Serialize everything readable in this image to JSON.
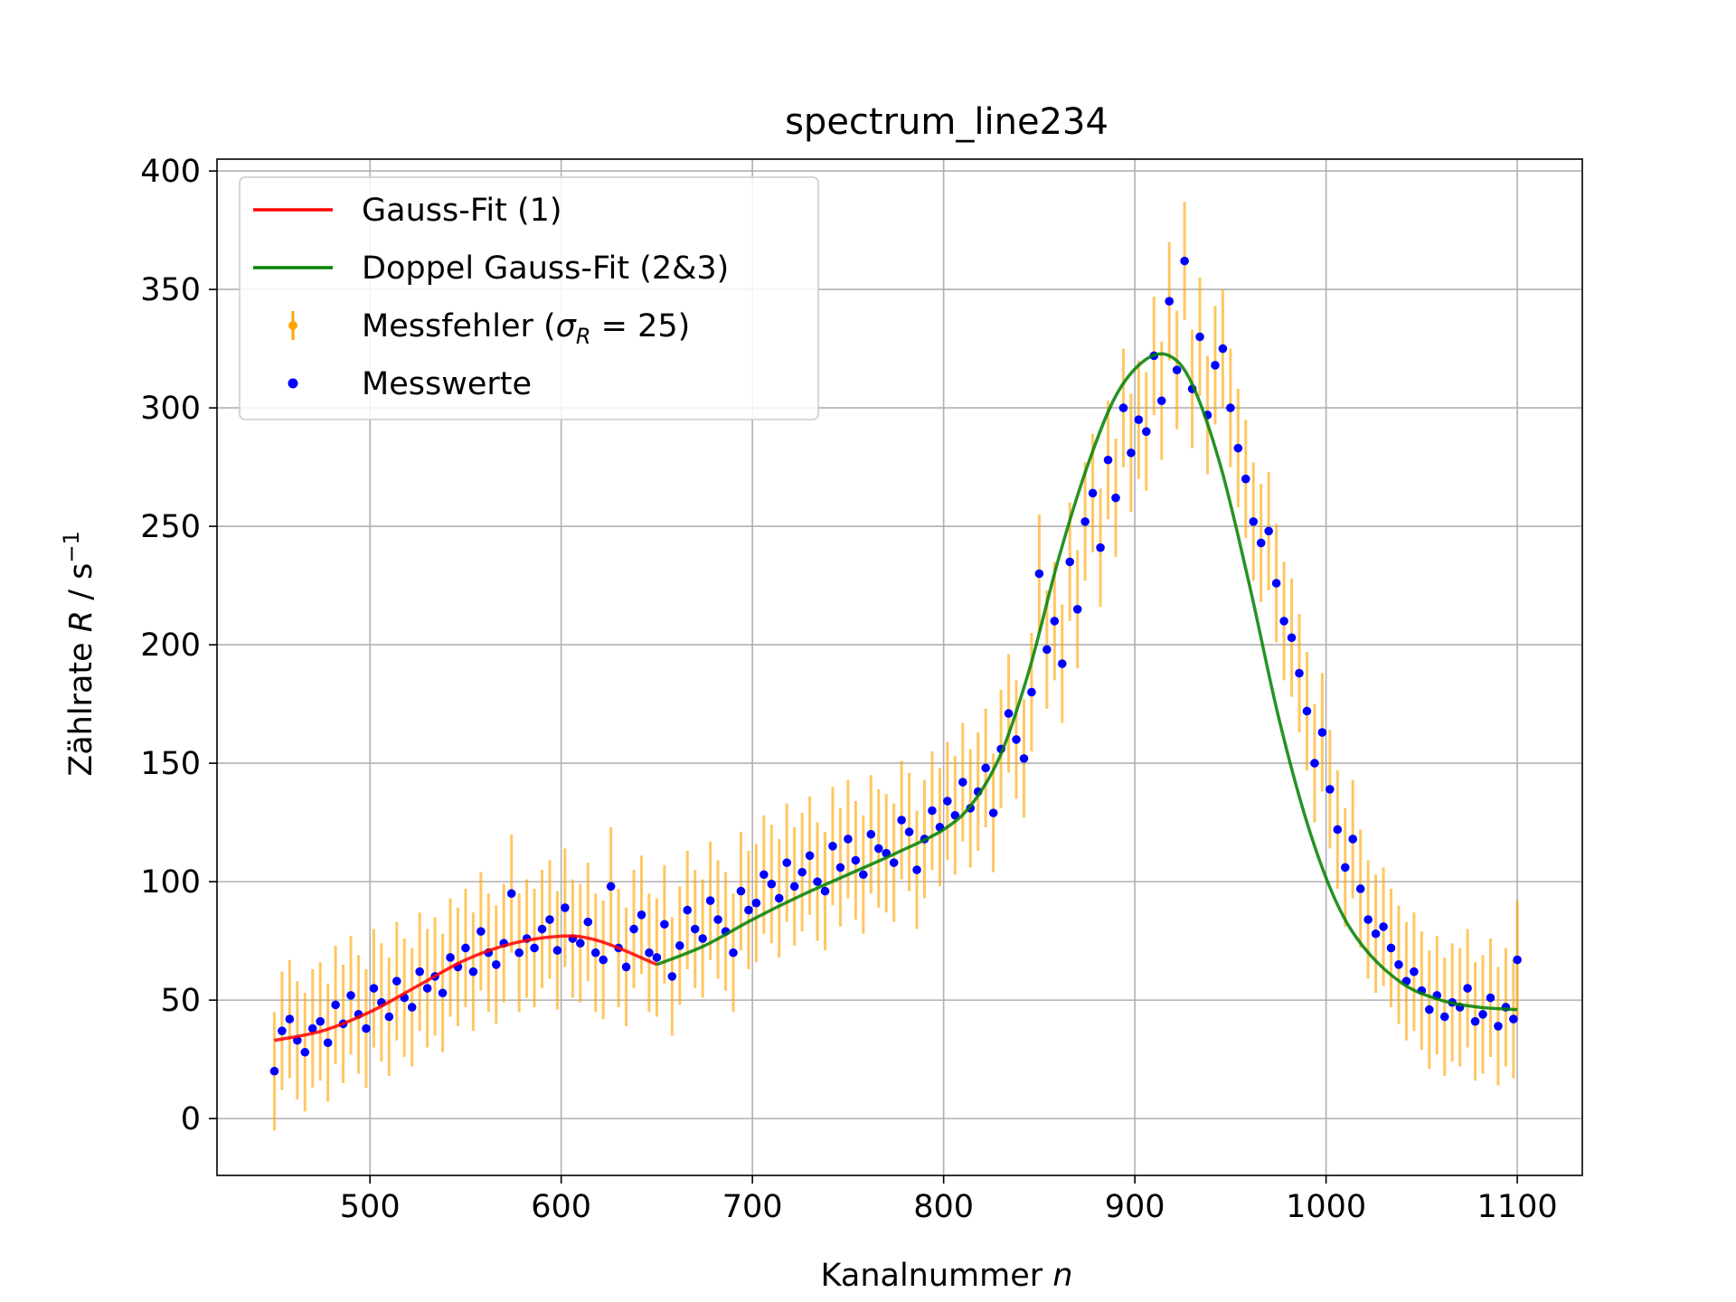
{
  "chart_data": {
    "type": "scatter",
    "title": "spectrum_line234",
    "xlabel": {
      "text": "Kanalnummer ",
      "var": "n"
    },
    "ylabel": {
      "text": "Zählrate ",
      "var": "R",
      "unit": " / s",
      "exp": "−1"
    },
    "xlim": [
      420,
      1134
    ],
    "ylim": [
      -24,
      405
    ],
    "xticks": [
      500,
      600,
      700,
      800,
      900,
      1000,
      1100
    ],
    "yticks": [
      0,
      50,
      100,
      150,
      200,
      250,
      300,
      350,
      400
    ],
    "grid": true,
    "legend_position": "top-left",
    "legend": {
      "gauss": "Gauss-Fit (1)",
      "doppel": "Doppel Gauss-Fit (2&3)",
      "fehler_prefix": "Messfehler (",
      "fehler_sym": "σ",
      "fehler_sub": "R",
      "fehler_suffix": " = 25)",
      "messwerte": "Messwerte"
    },
    "error_sigma": 25,
    "colors": {
      "gauss": "#ff0000",
      "doppel": "#008000",
      "errorbars": "#ffa500",
      "points": "#0000ff"
    },
    "series": [
      {
        "name": "Gauss-Fit (1)",
        "kind": "line",
        "x": [
          450,
          475,
          500,
          525,
          550,
          575,
          600,
          615,
          630,
          650
        ],
        "y": [
          33,
          37,
          45,
          56,
          67,
          74,
          77,
          76,
          72,
          65
        ]
      },
      {
        "name": "Doppel Gauss-Fit (2&3)",
        "kind": "line",
        "x": [
          650,
          675,
          700,
          725,
          750,
          775,
          800,
          815,
          830,
          845,
          860,
          875,
          890,
          905,
          918,
          930,
          945,
          960,
          975,
          990,
          1005,
          1020,
          1040,
          1060,
          1080,
          1100
        ],
        "y": [
          65,
          73,
          84,
          94,
          103,
          112,
          122,
          133,
          154,
          190,
          236,
          275,
          305,
          320,
          322,
          310,
          275,
          225,
          170,
          125,
          92,
          72,
          57,
          50,
          47,
          46
        ]
      },
      {
        "name": "Messfehler (σR = 25)",
        "kind": "errorbar",
        "x": [
          450,
          454,
          458,
          462,
          466,
          470,
          474,
          478,
          482,
          486,
          490,
          494,
          498,
          502,
          506,
          510,
          514,
          518,
          522,
          526,
          530,
          534,
          538,
          542,
          546,
          550,
          554,
          558,
          562,
          566,
          570,
          574,
          578,
          582,
          586,
          590,
          594,
          598,
          602,
          606,
          610,
          614,
          618,
          622,
          626,
          630,
          634,
          638,
          642,
          646,
          650,
          654,
          658,
          662,
          666,
          670,
          674,
          678,
          682,
          686,
          690,
          694,
          698,
          702,
          706,
          710,
          714,
          718,
          722,
          726,
          730,
          734,
          738,
          742,
          746,
          750,
          754,
          758,
          762,
          766,
          770,
          774,
          778,
          782,
          786,
          790,
          794,
          798,
          802,
          806,
          810,
          814,
          818,
          822,
          826,
          830,
          834,
          838,
          842,
          846,
          850,
          854,
          858,
          862,
          866,
          870,
          874,
          878,
          882,
          886,
          890,
          894,
          898,
          902,
          906,
          910,
          914,
          918,
          922,
          926,
          930,
          934,
          938,
          942,
          946,
          950,
          954,
          958,
          962,
          966,
          970,
          974,
          978,
          982,
          986,
          990,
          994,
          998,
          1002,
          1006,
          1010,
          1014,
          1018,
          1022,
          1026,
          1030,
          1034,
          1038,
          1042,
          1046,
          1050,
          1054,
          1058,
          1062,
          1066,
          1070,
          1074,
          1078,
          1082,
          1086,
          1090,
          1094,
          1098,
          1100
        ],
        "y": [
          20,
          37,
          42,
          33,
          28,
          38,
          41,
          32,
          48,
          40,
          52,
          44,
          38,
          55,
          49,
          43,
          58,
          51,
          47,
          62,
          55,
          60,
          53,
          68,
          64,
          72,
          62,
          79,
          70,
          65,
          74,
          95,
          70,
          76,
          72,
          80,
          84,
          71,
          89,
          76,
          74,
          83,
          70,
          67,
          98,
          72,
          64,
          80,
          86,
          70,
          68,
          82,
          60,
          73,
          88,
          80,
          76,
          92,
          84,
          79,
          70,
          96,
          88,
          91,
          103,
          99,
          93,
          108,
          98,
          104,
          111,
          100,
          96,
          115,
          106,
          118,
          109,
          103,
          120,
          114,
          112,
          108,
          126,
          121,
          105,
          118,
          130,
          123,
          134,
          128,
          142,
          131,
          138,
          148,
          129,
          156,
          171,
          160,
          152,
          180,
          230,
          198,
          210,
          192,
          235,
          215,
          252,
          264,
          241,
          278,
          262,
          300,
          281,
          295,
          290,
          322,
          303,
          345,
          316,
          362,
          308,
          330,
          297,
          318,
          325,
          300,
          283,
          270,
          252,
          243,
          248,
          226,
          210,
          203,
          188,
          172,
          150,
          163,
          139,
          122,
          106,
          118,
          97,
          84,
          78,
          81,
          72,
          65,
          58,
          62,
          54,
          46,
          52,
          43,
          49,
          47,
          55,
          41,
          44,
          51,
          39,
          47,
          42,
          67
        ]
      },
      {
        "name": "Messwerte",
        "kind": "points",
        "x": [
          450,
          454,
          458,
          462,
          466,
          470,
          474,
          478,
          482,
          486,
          490,
          494,
          498,
          502,
          506,
          510,
          514,
          518,
          522,
          526,
          530,
          534,
          538,
          542,
          546,
          550,
          554,
          558,
          562,
          566,
          570,
          574,
          578,
          582,
          586,
          590,
          594,
          598,
          602,
          606,
          610,
          614,
          618,
          622,
          626,
          630,
          634,
          638,
          642,
          646,
          650,
          654,
          658,
          662,
          666,
          670,
          674,
          678,
          682,
          686,
          690,
          694,
          698,
          702,
          706,
          710,
          714,
          718,
          722,
          726,
          730,
          734,
          738,
          742,
          746,
          750,
          754,
          758,
          762,
          766,
          770,
          774,
          778,
          782,
          786,
          790,
          794,
          798,
          802,
          806,
          810,
          814,
          818,
          822,
          826,
          830,
          834,
          838,
          842,
          846,
          850,
          854,
          858,
          862,
          866,
          870,
          874,
          878,
          882,
          886,
          890,
          894,
          898,
          902,
          906,
          910,
          914,
          918,
          922,
          926,
          930,
          934,
          938,
          942,
          946,
          950,
          954,
          958,
          962,
          966,
          970,
          974,
          978,
          982,
          986,
          990,
          994,
          998,
          1002,
          1006,
          1010,
          1014,
          1018,
          1022,
          1026,
          1030,
          1034,
          1038,
          1042,
          1046,
          1050,
          1054,
          1058,
          1062,
          1066,
          1070,
          1074,
          1078,
          1082,
          1086,
          1090,
          1094,
          1098,
          1100
        ],
        "y": [
          20,
          37,
          42,
          33,
          28,
          38,
          41,
          32,
          48,
          40,
          52,
          44,
          38,
          55,
          49,
          43,
          58,
          51,
          47,
          62,
          55,
          60,
          53,
          68,
          64,
          72,
          62,
          79,
          70,
          65,
          74,
          95,
          70,
          76,
          72,
          80,
          84,
          71,
          89,
          76,
          74,
          83,
          70,
          67,
          98,
          72,
          64,
          80,
          86,
          70,
          68,
          82,
          60,
          73,
          88,
          80,
          76,
          92,
          84,
          79,
          70,
          96,
          88,
          91,
          103,
          99,
          93,
          108,
          98,
          104,
          111,
          100,
          96,
          115,
          106,
          118,
          109,
          103,
          120,
          114,
          112,
          108,
          126,
          121,
          105,
          118,
          130,
          123,
          134,
          128,
          142,
          131,
          138,
          148,
          129,
          156,
          171,
          160,
          152,
          180,
          230,
          198,
          210,
          192,
          235,
          215,
          252,
          264,
          241,
          278,
          262,
          300,
          281,
          295,
          290,
          322,
          303,
          345,
          316,
          362,
          308,
          330,
          297,
          318,
          325,
          300,
          283,
          270,
          252,
          243,
          248,
          226,
          210,
          203,
          188,
          172,
          150,
          163,
          139,
          122,
          106,
          118,
          97,
          84,
          78,
          81,
          72,
          65,
          58,
          62,
          54,
          46,
          52,
          43,
          49,
          47,
          55,
          41,
          44,
          51,
          39,
          47,
          42,
          67
        ]
      }
    ]
  }
}
